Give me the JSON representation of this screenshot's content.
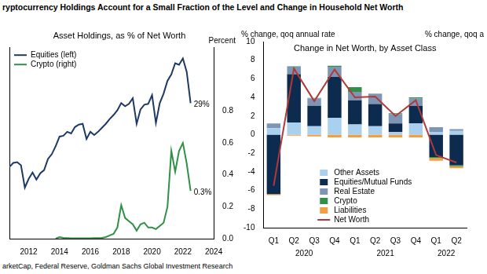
{
  "title": "ryptocurrency Holdings Account for a Small Fraction of the Level and Change in Household Net Worth",
  "source": "arketCap, Federal Reserve, Goldman Sachs Global Investment Research",
  "chart_data": [
    {
      "type": "line",
      "subtitle": "Asset Holdings, as % of Net Worth",
      "y2_label": "Percent",
      "x": [
        2010.75,
        2011,
        2011.25,
        2011.5,
        2011.75,
        2012,
        2012.25,
        2012.5,
        2012.75,
        2013,
        2013.25,
        2013.5,
        2013.75,
        2014,
        2014.25,
        2014.5,
        2014.75,
        2015,
        2015.25,
        2015.5,
        2015.75,
        2016,
        2016.25,
        2016.5,
        2016.75,
        2017,
        2017.25,
        2017.5,
        2017.75,
        2018,
        2018.25,
        2018.5,
        2018.75,
        2019,
        2019.25,
        2019.5,
        2019.75,
        2020,
        2020.25,
        2020.5,
        2020.75,
        2021,
        2021.25,
        2021.5,
        2021.75,
        2022,
        2022.25,
        2022.5
      ],
      "xlim": [
        2010.75,
        2024
      ],
      "xticks": [
        2012,
        2014,
        2016,
        2018,
        2020,
        2022,
        2024
      ],
      "ylim": [
        12,
        36
      ],
      "y2lim": [
        0,
        1.2
      ],
      "y2ticks": [
        {
          "value": 0,
          "label": "0.0"
        },
        0.2,
        0.4,
        0.6,
        0.8
      ],
      "grid": false,
      "legend": "upper left",
      "series": [
        {
          "name": "Equities (left)",
          "color": "#1f3864",
          "end_label": "29%",
          "values": [
            21.0,
            21.5,
            21.6,
            21.2,
            18.4,
            19.5,
            20.3,
            19.4,
            20.2,
            20.6,
            22.0,
            22.6,
            23.6,
            24.8,
            24.9,
            25.4,
            25.2,
            26.0,
            26.3,
            26.4,
            24.5,
            25.4,
            25.0,
            25.4,
            25.9,
            26.4,
            27.0,
            27.5,
            28.1,
            29.0,
            28.6,
            28.9,
            29.6,
            26.4,
            28.2,
            28.8,
            28.9,
            30.0,
            26.5,
            29.0,
            30.2,
            31.8,
            32.6,
            34.0,
            33.8,
            34.6,
            32.9,
            29.0
          ]
        },
        {
          "name": "Crypto (right)",
          "color": "#2e9146",
          "axis": "y2",
          "end_label": "0.3%",
          "values": [
            null,
            null,
            null,
            null,
            null,
            null,
            null,
            null,
            null,
            null,
            null,
            null,
            0.0,
            0.01,
            0.005,
            0.004,
            0.003,
            0.002,
            0.002,
            0.002,
            0.003,
            0.003,
            0.004,
            0.004,
            0.005,
            0.01,
            0.02,
            0.03,
            0.07,
            0.21,
            0.13,
            0.11,
            0.09,
            0.05,
            0.09,
            0.1,
            0.07,
            0.07,
            0.06,
            0.08,
            0.1,
            0.2,
            0.55,
            0.42,
            0.55,
            0.6,
            0.47,
            0.3
          ]
        }
      ]
    },
    {
      "type": "bar",
      "stacked": true,
      "title": "Change in Net Worth, by Asset Class",
      "y_label": "% change, qoq annual rate",
      "y2_label": "% change, qoq a",
      "categories": [
        "Q1",
        "Q2",
        "Q3",
        "Q4",
        "Q1",
        "Q2",
        "Q3",
        "Q4",
        "Q1",
        "Q2"
      ],
      "category_groups": [
        {
          "label": "2020",
          "span": 4
        },
        {
          "label": "2021",
          "span": 4
        },
        {
          "label": "2022",
          "span": 2
        }
      ],
      "ylim": [
        -10,
        10
      ],
      "yticks": [
        -10,
        -8,
        -6,
        -4,
        -2,
        0,
        2,
        4,
        6,
        8,
        10
      ],
      "grid": false,
      "legend": "lower center",
      "series": [
        {
          "name": "Other Assets",
          "color": "#a9d0ee",
          "values": [
            0.7,
            1.3,
            0.9,
            1.8,
            1.1,
            0.9,
            0.3,
            1.2,
            0.3,
            0.4
          ]
        },
        {
          "name": "Equities/Mutual Funds",
          "color": "#0d2a4f",
          "values": [
            -6.4,
            5.2,
            2.2,
            4.4,
            2.6,
            2.4,
            0.9,
            1.9,
            -2.4,
            -3.3
          ]
        },
        {
          "name": "Real Estate",
          "color": "#7f95b5",
          "values": [
            0.5,
            0.8,
            0.8,
            1.1,
            0.9,
            1.1,
            1.0,
            0.8,
            0.5,
            0.2
          ]
        },
        {
          "name": "Crypto",
          "color": "#2e9146",
          "values": [
            0,
            0.05,
            0.05,
            0.1,
            0.5,
            0,
            0.1,
            0.1,
            -0.1,
            -0.1
          ]
        },
        {
          "name": "Liabilities",
          "color": "#f0a040",
          "values": [
            -0.1,
            -0.1,
            -0.2,
            -0.3,
            -0.3,
            -0.3,
            -0.3,
            -0.3,
            -0.3,
            -0.2
          ]
        },
        {
          "name": "Net Worth",
          "type": "line",
          "color": "#b03a3a",
          "values": [
            -5.5,
            7.1,
            3.6,
            7.0,
            4.0,
            4.1,
            2.0,
            3.7,
            -2.2,
            -3.0
          ]
        }
      ]
    }
  ]
}
